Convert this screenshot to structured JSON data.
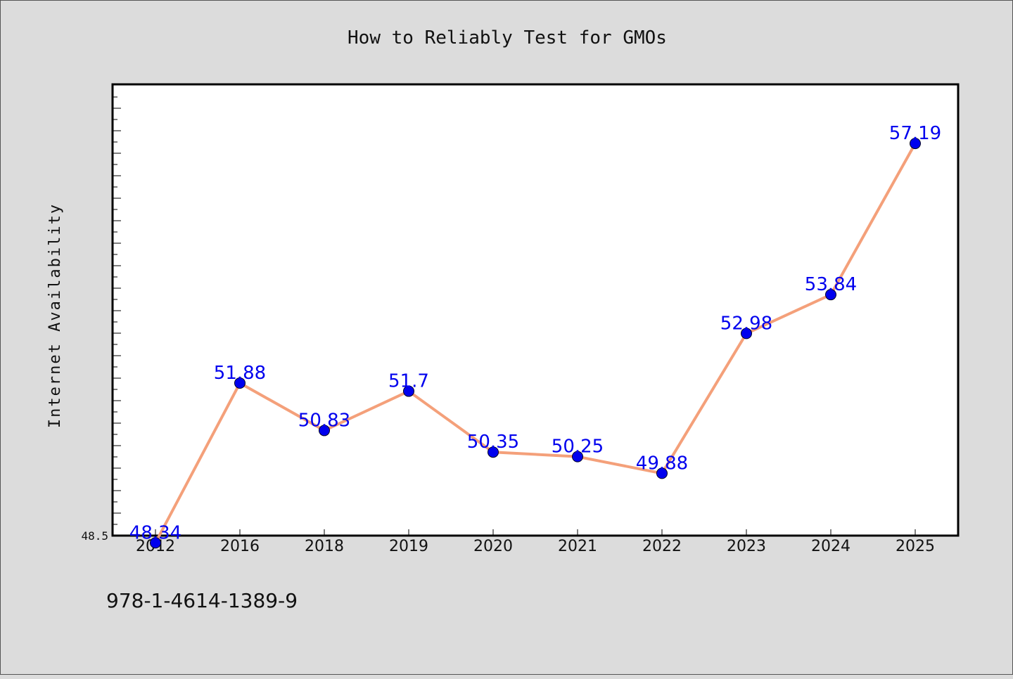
{
  "chart_data": {
    "type": "line",
    "title": "How to Reliably Test for GMOs",
    "xlabel": "",
    "ylabel": "Internet Availability",
    "categories": [
      "2012",
      "2016",
      "2018",
      "2019",
      "2020",
      "2021",
      "2022",
      "2023",
      "2024",
      "2025"
    ],
    "series": [
      {
        "values": [
          48.34,
          51.88,
          50.83,
          51.7,
          50.35,
          50.25,
          49.88,
          52.98,
          53.84,
          57.19
        ],
        "labels": [
          "48.34",
          "51.88",
          "50.83",
          "51.7",
          "50.35",
          "50.25",
          "49.88",
          "52.98",
          "53.84",
          "57.19"
        ],
        "line_color": "#f4a07a",
        "marker_color": "#0000ee"
      }
    ],
    "yticks": [
      "48.5"
    ],
    "ylim": [
      48.5,
      58.5
    ],
    "grid": false,
    "legend": "none"
  },
  "footer": {
    "code": "978-1-4614-1389-9"
  }
}
